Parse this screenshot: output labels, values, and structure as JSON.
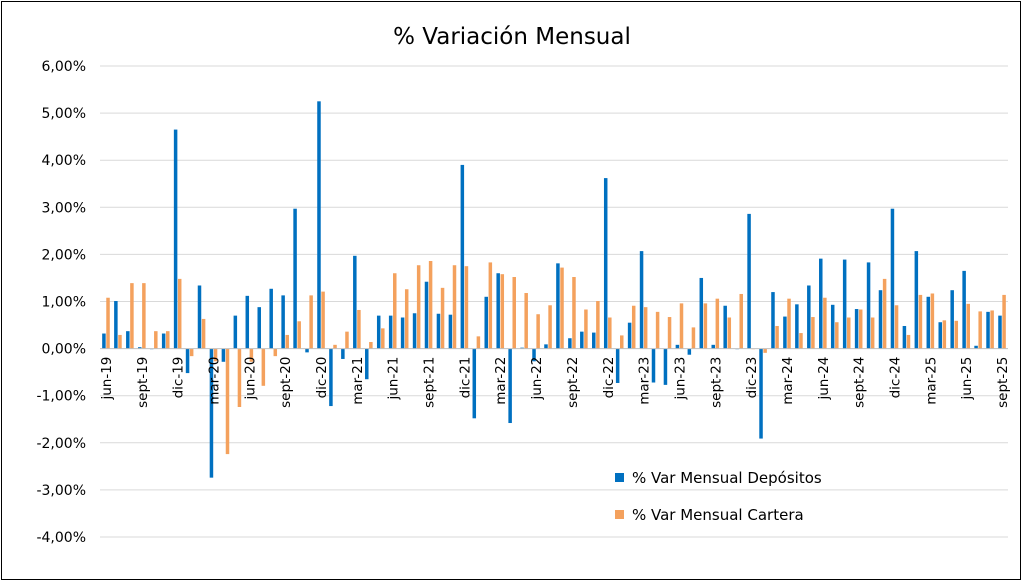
{
  "chart_data": {
    "type": "bar",
    "title": "% Variación Mensual",
    "xlabel": "",
    "ylabel": "",
    "ylim": [
      -0.04,
      0.06
    ],
    "y_ticks": [
      0.06,
      0.05,
      0.04,
      0.03,
      0.02,
      0.01,
      0.0,
      -0.01,
      -0.02,
      -0.03,
      -0.04
    ],
    "y_tick_labels": [
      "6,00%",
      "5,00%",
      "4,00%",
      "3,00%",
      "2,00%",
      "1,00%",
      "0,00%",
      "-1,00%",
      "-2,00%",
      "-3,00%",
      "-4,00%"
    ],
    "grid": true,
    "legend_position": "bottom-right",
    "x_tick_labels": [
      "jun-19",
      "sept-19",
      "dic-19",
      "mar-20",
      "jun-20",
      "sept-20",
      "dic-20",
      "mar-21",
      "jun-21",
      "sept-21",
      "dic-21",
      "mar-22",
      "jun-22",
      "sept-22",
      "dic-22",
      "mar-23",
      "jun-23",
      "sept-23",
      "dic-23",
      "mar-24",
      "jun-24",
      "sept-24",
      "dic-24",
      "mar-25",
      "jun-25",
      "sept-25"
    ],
    "tick_every": 3,
    "categories": [
      "jun-19",
      "jul-19",
      "ago-19",
      "sept-19",
      "oct-19",
      "nov-19",
      "dic-19",
      "ene-20",
      "feb-20",
      "mar-20",
      "abr-20",
      "may-20",
      "jun-20",
      "jul-20",
      "ago-20",
      "sept-20",
      "oct-20",
      "nov-20",
      "dic-20",
      "ene-21",
      "feb-21",
      "mar-21",
      "abr-21",
      "may-21",
      "jun-21",
      "jul-21",
      "ago-21",
      "sept-21",
      "oct-21",
      "nov-21",
      "dic-21",
      "ene-22",
      "feb-22",
      "mar-22",
      "abr-22",
      "may-22",
      "jun-22",
      "jul-22",
      "ago-22",
      "sept-22",
      "oct-22",
      "nov-22",
      "dic-22",
      "ene-23",
      "feb-23",
      "mar-23",
      "abr-23",
      "may-23",
      "jun-23",
      "jul-23",
      "ago-23",
      "sept-23",
      "oct-23",
      "nov-23",
      "dic-23",
      "ene-24",
      "feb-24",
      "mar-24",
      "abr-24",
      "may-24",
      "jun-24",
      "jul-24",
      "ago-24",
      "sept-24",
      "oct-24",
      "nov-24",
      "dic-24",
      "ene-25",
      "feb-25",
      "mar-25",
      "abr-25",
      "may-25",
      "jun-25",
      "jul-25",
      "ago-25",
      "sept-25"
    ],
    "series": [
      {
        "name": "% Var Mensual Depósitos",
        "color": "#0070c0",
        "values": [
          0.0032,
          0.0101,
          0.0037,
          0.0003,
          0.0,
          0.0032,
          0.0465,
          -0.0052,
          0.0134,
          -0.0274,
          -0.0028,
          0.007,
          0.0112,
          0.0088,
          0.0127,
          0.0113,
          0.0297,
          -0.0008,
          0.0525,
          -0.0122,
          -0.0022,
          0.0197,
          -0.0065,
          0.007,
          0.007,
          0.0066,
          0.0075,
          0.0142,
          0.0074,
          0.0072,
          0.039,
          -0.0148,
          0.011,
          0.016,
          -0.0158,
          0.0002,
          -0.0027,
          0.0009,
          0.0181,
          0.0022,
          0.0036,
          0.0034,
          0.0362,
          -0.0073,
          0.0055,
          0.0207,
          -0.0072,
          -0.0077,
          0.0008,
          -0.0013,
          0.015,
          0.0008,
          0.0091,
          0.0,
          0.0286,
          -0.0191,
          0.012,
          0.0068,
          0.0094,
          0.0134,
          0.0191,
          0.0093,
          0.0189,
          0.0084,
          0.0183,
          0.0124,
          0.0297,
          0.0048,
          0.0207,
          0.011,
          0.0056,
          0.0124,
          0.0165,
          0.0006,
          0.0078,
          0.007
        ]
      },
      {
        "name": "% Var Mensual Cartera",
        "color": "#f4a15d",
        "values": [
          0.0108,
          0.0029,
          0.0139,
          0.0139,
          0.0037,
          0.0037,
          0.0148,
          -0.0016,
          0.0063,
          -0.0027,
          -0.0224,
          -0.0124,
          -0.0028,
          -0.0079,
          -0.0016,
          0.0029,
          0.0058,
          0.0113,
          0.0121,
          0.0008,
          0.0036,
          0.0082,
          0.0014,
          0.0043,
          0.016,
          0.0126,
          0.0177,
          0.0186,
          0.0129,
          0.0177,
          0.0175,
          0.0026,
          0.0183,
          0.0158,
          0.0152,
          0.0118,
          0.0073,
          0.0092,
          0.0172,
          0.0152,
          0.0083,
          0.0101,
          0.0066,
          0.0028,
          0.0091,
          0.0088,
          0.0078,
          0.0067,
          0.0096,
          0.0045,
          0.0096,
          0.0106,
          0.0066,
          0.0116,
          0.0,
          -0.0009,
          0.0048,
          0.0106,
          0.0033,
          0.0067,
          0.0108,
          0.0056,
          0.0066,
          0.0083,
          0.0066,
          0.0148,
          0.0092,
          0.0029,
          0.0114,
          0.0117,
          0.006,
          0.0059,
          0.0095,
          0.0079,
          0.0081,
          0.0114
        ]
      }
    ]
  }
}
